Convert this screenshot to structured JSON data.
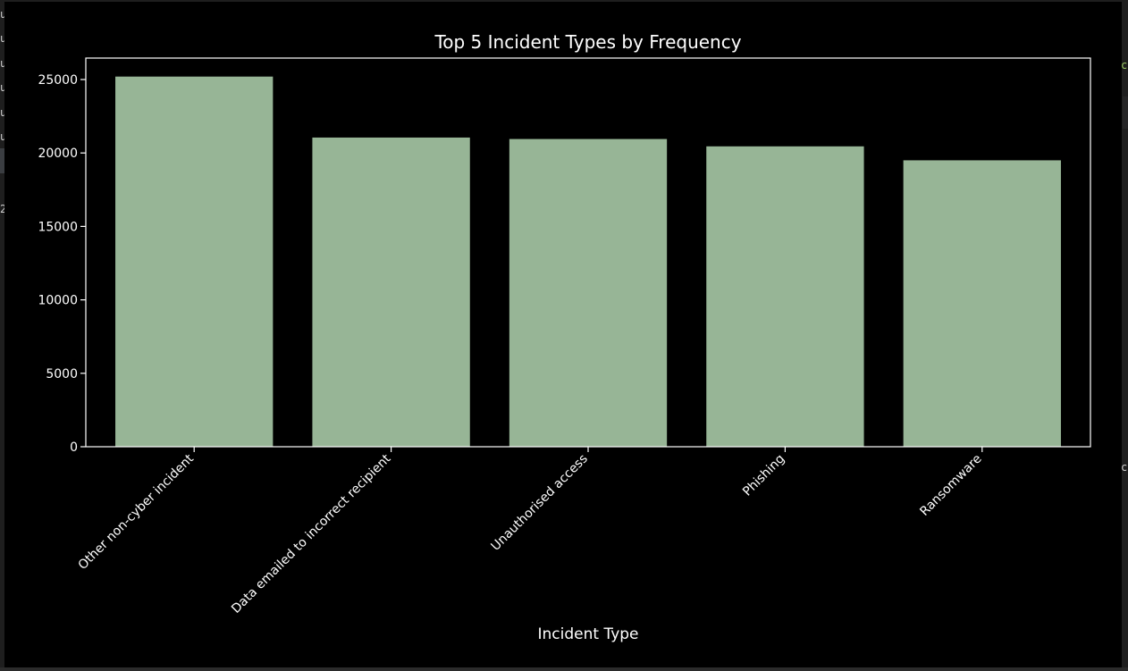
{
  "background_panel": {
    "left_fragments": [
      "u",
      "u",
      "u",
      "u",
      "u",
      "u",
      "2"
    ],
    "right_fragments": [
      "c",
      "c"
    ]
  },
  "chart_data": {
    "type": "bar",
    "title": "Top 5 Incident Types by Frequency",
    "xlabel": "Incident Type",
    "ylabel": "",
    "categories": [
      "Other non-cyber incident",
      "Data emailed to incorrect recipient",
      "Unauthorised access",
      "Phishing",
      "Ransomware"
    ],
    "values": [
      25200,
      21050,
      20950,
      20450,
      19500
    ],
    "ylim": [
      0,
      26460
    ],
    "yticks": [
      0,
      5000,
      10000,
      15000,
      20000,
      25000
    ],
    "grid": false,
    "legend": "none",
    "colors": {
      "bar": "#97b596",
      "background": "#000000",
      "axes": "#ffffff",
      "text": "#ffffff"
    }
  }
}
